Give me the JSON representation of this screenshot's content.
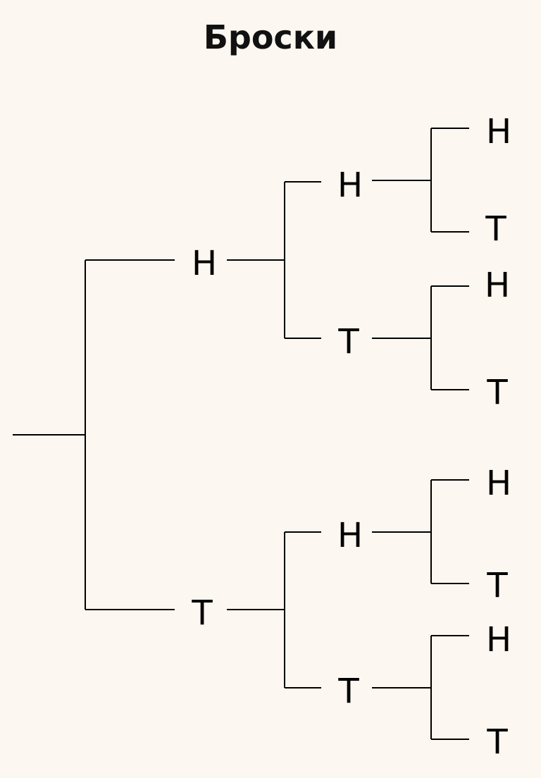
{
  "title": "Броски",
  "colors": {
    "background": "#fcf7f0",
    "line": "#000000",
    "text": "#000000"
  },
  "tree": {
    "level1": [
      {
        "label": "H",
        "children": [
          {
            "label": "H",
            "children": [
              {
                "label": "H"
              },
              {
                "label": "T"
              }
            ]
          },
          {
            "label": "T",
            "children": [
              {
                "label": "H"
              },
              {
                "label": "T"
              }
            ]
          }
        ]
      },
      {
        "label": "T",
        "children": [
          {
            "label": "H",
            "children": [
              {
                "label": "H"
              },
              {
                "label": "T"
              }
            ]
          },
          {
            "label": "T",
            "children": [
              {
                "label": "H"
              },
              {
                "label": "T"
              }
            ]
          }
        ]
      }
    ]
  }
}
